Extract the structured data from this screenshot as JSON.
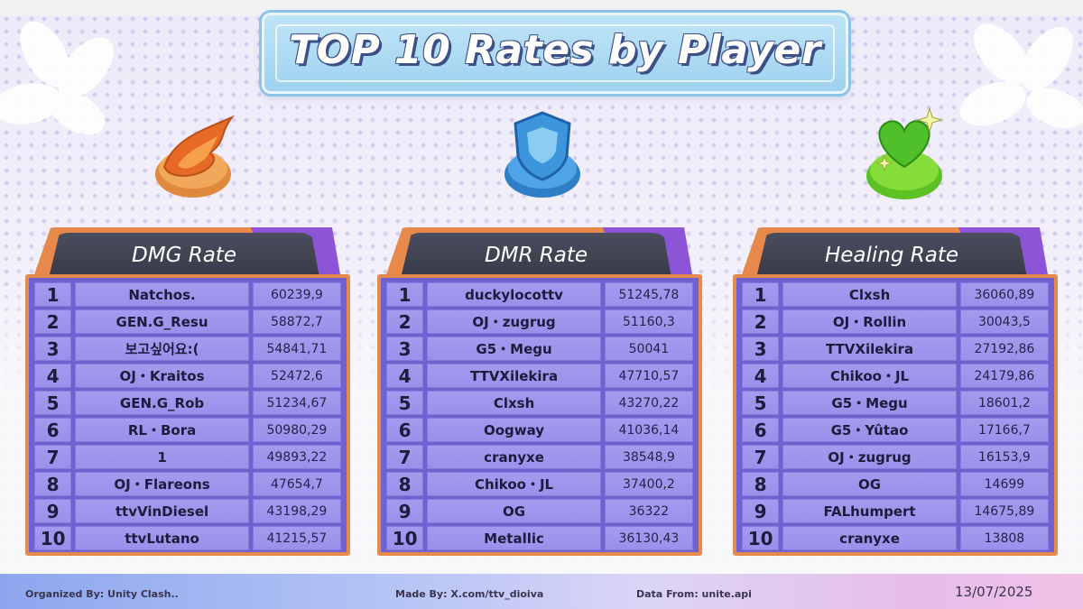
{
  "title": "TOP 10 Rates by Player",
  "panels": [
    {
      "header": "DMG Rate",
      "emblem": "fire-emblem-icon",
      "rows": [
        {
          "rank": "1",
          "name": "Natchos.",
          "value": "60239,9"
        },
        {
          "rank": "2",
          "name": "GEN.G_Resu",
          "value": "58872,7"
        },
        {
          "rank": "3",
          "name": "보고싶어요:(",
          "value": "54841,71"
        },
        {
          "rank": "4",
          "name": "OJ・Kraitos",
          "value": "52472,6"
        },
        {
          "rank": "5",
          "name": "GEN.G_Rob",
          "value": "51234,67"
        },
        {
          "rank": "6",
          "name": "RL・Bora",
          "value": "50980,29"
        },
        {
          "rank": "7",
          "name": "1",
          "value": "49893,22"
        },
        {
          "rank": "8",
          "name": "OJ・Flareons",
          "value": "47654,7"
        },
        {
          "rank": "9",
          "name": "ttvVinDiesel",
          "value": "43198,29"
        },
        {
          "rank": "10",
          "name": "ttvLutano",
          "value": "41215,57"
        }
      ]
    },
    {
      "header": "DMR Rate",
      "emblem": "shield-emblem-icon",
      "rows": [
        {
          "rank": "1",
          "name": "duckylocottv",
          "value": "51245,78"
        },
        {
          "rank": "2",
          "name": "OJ・zugrug",
          "value": "51160,3"
        },
        {
          "rank": "3",
          "name": "G5・Megu",
          "value": "50041"
        },
        {
          "rank": "4",
          "name": "TTVXilekira",
          "value": "47710,57"
        },
        {
          "rank": "5",
          "name": "Clxsh",
          "value": "43270,22"
        },
        {
          "rank": "6",
          "name": "Oogway",
          "value": "41036,14"
        },
        {
          "rank": "7",
          "name": "cranyxe",
          "value": "38548,9"
        },
        {
          "rank": "8",
          "name": "Chikoo・JL",
          "value": "37400,2"
        },
        {
          "rank": "9",
          "name": "OG",
          "value": "36322"
        },
        {
          "rank": "10",
          "name": "Metallic",
          "value": "36130,43"
        }
      ]
    },
    {
      "header": "Healing Rate",
      "emblem": "heart-emblem-icon",
      "rows": [
        {
          "rank": "1",
          "name": "Clxsh",
          "value": "36060,89"
        },
        {
          "rank": "2",
          "name": "OJ・Rollin",
          "value": "30043,5"
        },
        {
          "rank": "3",
          "name": "TTVXilekira",
          "value": "27192,86"
        },
        {
          "rank": "4",
          "name": "Chikoo・JL",
          "value": "24179,86"
        },
        {
          "rank": "5",
          "name": "G5・Megu",
          "value": "18601,2"
        },
        {
          "rank": "6",
          "name": "G5・Yûtao",
          "value": "17166,7"
        },
        {
          "rank": "7",
          "name": "OJ・zugrug",
          "value": "16153,9"
        },
        {
          "rank": "8",
          "name": "OG",
          "value": "14699"
        },
        {
          "rank": "9",
          "name": "FALhumpert",
          "value": "14675,89"
        },
        {
          "rank": "10",
          "name": "cranyxe",
          "value": "13808"
        }
      ]
    }
  ],
  "footer": {
    "organized": "Organized By: Unity Clash..",
    "made": "Made By: X.com/ttv_dioiva",
    "data_from": "Data From: unite.api",
    "date": "13/07/2025"
  },
  "colors": {
    "accent_orange": "#e8894c",
    "board_purple": "#6e62d1",
    "cell_lavender": "#a49bef",
    "header_dark": "#383a48"
  }
}
